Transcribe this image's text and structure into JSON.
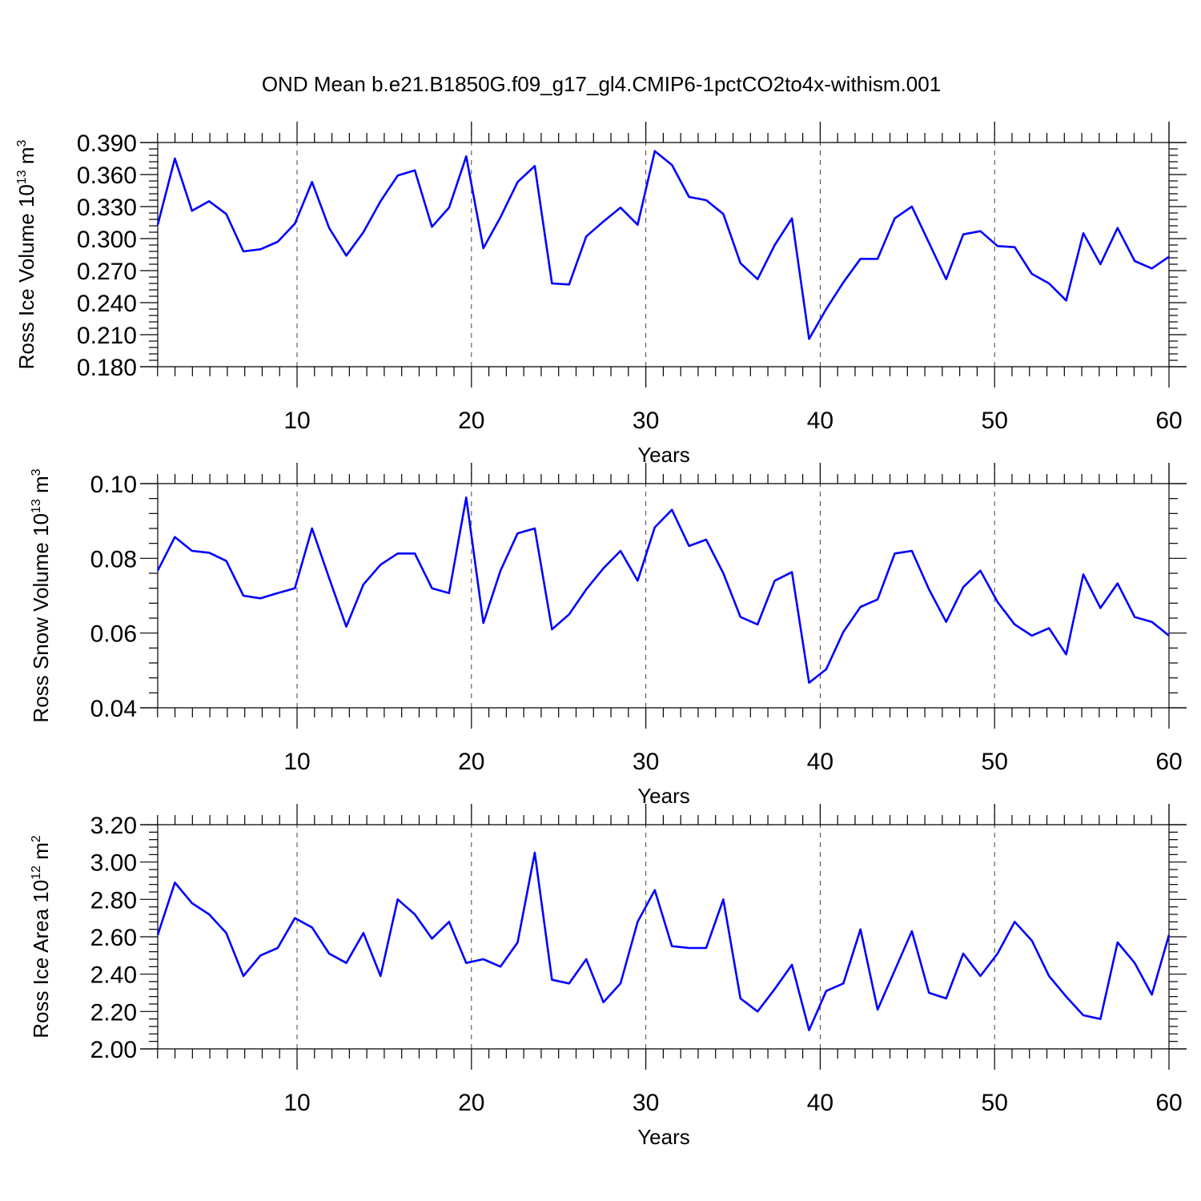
{
  "title": "OND Mean b.e21.B1850G.f09_g17_gl4.CMIP6-1pctCO2to4x-withism.001",
  "line_color": "#0000ff",
  "chart_data": [
    {
      "type": "line",
      "ylabel_main": "Ross Ice Volume 10",
      "ylabel_exp": "13",
      "ylabel_unit": " m",
      "ylabel_unit_exp": "3",
      "xlabel": "Years",
      "xlim": [
        1,
        60
      ],
      "ylim": [
        0.18,
        0.39
      ],
      "yticks": [
        0.18,
        0.21,
        0.24,
        0.27,
        0.3,
        0.33,
        0.36,
        0.39
      ],
      "ytick_labels": [
        "0.180",
        "0.210",
        "0.240",
        "0.270",
        "0.300",
        "0.330",
        "0.360",
        "0.390"
      ],
      "xticks": [
        10,
        20,
        30,
        40,
        50,
        60
      ],
      "xtick_labels": [
        "10",
        "20",
        "30",
        "40",
        "50",
        "60"
      ],
      "x": [
        1,
        2,
        3,
        4,
        5,
        6,
        7,
        8,
        9,
        10,
        11,
        12,
        13,
        14,
        15,
        16,
        17,
        18,
        19,
        20,
        21,
        22,
        23,
        24,
        25,
        26,
        27,
        28,
        29,
        30,
        31,
        32,
        33,
        34,
        35,
        36,
        37,
        38,
        39,
        40,
        41,
        42,
        43,
        44,
        45,
        46,
        47,
        48,
        49,
        50,
        51,
        52,
        53,
        54,
        55,
        56,
        57,
        58,
        59,
        60
      ],
      "values": [
        0.313,
        0.375,
        0.326,
        0.335,
        0.323,
        0.288,
        0.29,
        0.297,
        0.314,
        0.353,
        0.31,
        0.284,
        0.306,
        0.335,
        0.359,
        0.364,
        0.311,
        0.329,
        0.377,
        0.291,
        0.32,
        0.353,
        0.368,
        0.258,
        0.257,
        0.302,
        0.316,
        0.329,
        0.313,
        0.382,
        0.369,
        0.339,
        0.336,
        0.323,
        0.277,
        0.262,
        0.294,
        0.319,
        0.206,
        0.234,
        0.259,
        0.281,
        0.281,
        0.319,
        0.33,
        0.296,
        0.262,
        0.304,
        0.307,
        0.293,
        0.292,
        0.267,
        0.258,
        0.242,
        0.305,
        0.276,
        0.31,
        0.279,
        0.272,
        0.283
      ]
    },
    {
      "type": "line",
      "ylabel_main": "Ross Snow Volume 10",
      "ylabel_exp": "13",
      "ylabel_unit": " m",
      "ylabel_unit_exp": "3",
      "xlabel": "Years",
      "xlim": [
        1,
        60
      ],
      "ylim": [
        0.04,
        0.1
      ],
      "yticks": [
        0.04,
        0.06,
        0.08,
        0.1
      ],
      "ytick_labels": [
        "0.04",
        "0.06",
        "0.08",
        "0.10"
      ],
      "xticks": [
        10,
        20,
        30,
        40,
        50,
        60
      ],
      "xtick_labels": [
        "10",
        "20",
        "30",
        "40",
        "50",
        "60"
      ],
      "x": [
        1,
        2,
        3,
        4,
        5,
        6,
        7,
        8,
        9,
        10,
        11,
        12,
        13,
        14,
        15,
        16,
        17,
        18,
        19,
        20,
        21,
        22,
        23,
        24,
        25,
        26,
        27,
        28,
        29,
        30,
        31,
        32,
        33,
        34,
        35,
        36,
        37,
        38,
        39,
        40,
        41,
        42,
        43,
        44,
        45,
        46,
        47,
        48,
        49,
        50,
        51,
        52,
        53,
        54,
        55,
        56,
        57,
        58,
        59,
        60
      ],
      "values": [
        0.0767,
        0.0857,
        0.082,
        0.0815,
        0.0793,
        0.07,
        0.0693,
        0.0707,
        0.072,
        0.088,
        0.0747,
        0.0617,
        0.073,
        0.0783,
        0.0813,
        0.0813,
        0.072,
        0.0707,
        0.0963,
        0.0627,
        0.0767,
        0.0867,
        0.088,
        0.061,
        0.065,
        0.0717,
        0.0773,
        0.082,
        0.074,
        0.0883,
        0.093,
        0.0833,
        0.085,
        0.076,
        0.0643,
        0.0623,
        0.074,
        0.0763,
        0.0467,
        0.0503,
        0.0603,
        0.067,
        0.069,
        0.0813,
        0.082,
        0.0717,
        0.063,
        0.0723,
        0.0767,
        0.0683,
        0.0623,
        0.0593,
        0.0613,
        0.0543,
        0.0757,
        0.0667,
        0.0733,
        0.0643,
        0.063,
        0.0593
      ]
    },
    {
      "type": "line",
      "ylabel_main": "Ross Ice Area 10",
      "ylabel_exp": "12",
      "ylabel_unit": " m",
      "ylabel_unit_exp": "2",
      "xlabel": "Years",
      "xlim": [
        1,
        60
      ],
      "ylim": [
        2.0,
        3.2
      ],
      "yticks": [
        2.0,
        2.2,
        2.4,
        2.6,
        2.8,
        3.0,
        3.2
      ],
      "ytick_labels": [
        "2.00",
        "2.20",
        "2.40",
        "2.60",
        "2.80",
        "3.00",
        "3.20"
      ],
      "xticks": [
        10,
        20,
        30,
        40,
        50,
        60
      ],
      "xtick_labels": [
        "10",
        "20",
        "30",
        "40",
        "50",
        "60"
      ],
      "x": [
        1,
        2,
        3,
        4,
        5,
        6,
        7,
        8,
        9,
        10,
        11,
        12,
        13,
        14,
        15,
        16,
        17,
        18,
        19,
        20,
        21,
        22,
        23,
        24,
        25,
        26,
        27,
        28,
        29,
        30,
        31,
        32,
        33,
        34,
        35,
        36,
        37,
        38,
        39,
        40,
        41,
        42,
        43,
        44,
        45,
        46,
        47,
        48,
        49,
        50,
        51,
        52,
        53,
        54,
        55,
        56,
        57,
        58,
        59,
        60
      ],
      "values": [
        2.61,
        2.89,
        2.78,
        2.72,
        2.62,
        2.39,
        2.5,
        2.54,
        2.7,
        2.65,
        2.51,
        2.46,
        2.62,
        2.39,
        2.8,
        2.72,
        2.59,
        2.68,
        2.46,
        2.48,
        2.44,
        2.57,
        3.05,
        2.37,
        2.35,
        2.48,
        2.25,
        2.35,
        2.68,
        2.85,
        2.55,
        2.54,
        2.54,
        2.8,
        2.27,
        2.2,
        2.32,
        2.45,
        2.1,
        2.31,
        2.35,
        2.64,
        2.21,
        2.42,
        2.63,
        2.3,
        2.27,
        2.51,
        2.39,
        2.51,
        2.68,
        2.58,
        2.39,
        2.28,
        2.18,
        2.16,
        2.57,
        2.46,
        2.29,
        2.61
      ]
    }
  ]
}
